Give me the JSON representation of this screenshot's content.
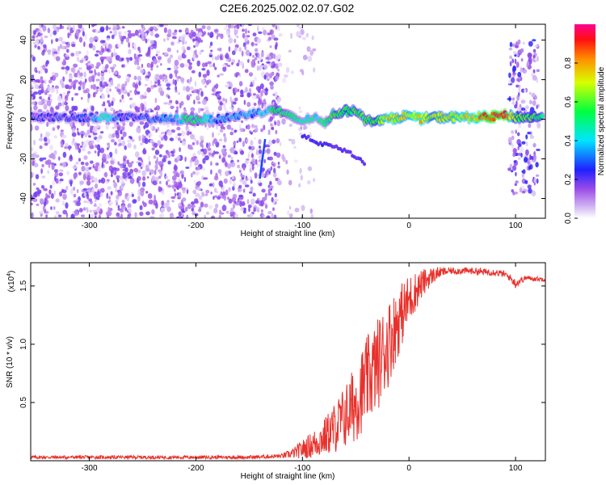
{
  "figure": {
    "title": "C2E6.2025.002.02.07.G02"
  },
  "chart_data": [
    {
      "type": "heatmap",
      "xlabel": "Height of straight line (km)",
      "ylabel": "Frequency (Hz)",
      "xlim": [
        -355,
        128
      ],
      "ylim": [
        -50,
        48
      ],
      "xticks": [
        -300,
        -200,
        -100,
        0,
        100
      ],
      "yticks": [
        -40,
        -20,
        0,
        20,
        40
      ],
      "colorbar": {
        "label": "Normalized spectral amplitude",
        "range": [
          0,
          1
        ],
        "ticks": [
          0.0,
          0.2,
          0.4,
          0.6,
          0.8
        ],
        "colors": [
          "#ffffff",
          "#cfb4f2",
          "#8a2be2",
          "#0000ff",
          "#00ffff",
          "#00ff00",
          "#ffff00",
          "#ff8000",
          "#ff0000",
          "#ff00aa"
        ]
      },
      "features": {
        "noise_regions": [
          {
            "x": [
              -355,
              -122
            ],
            "y": [
              -50,
              48
            ],
            "density": "high",
            "amplitude": 0.15
          },
          {
            "x": [
              -122,
              -88
            ],
            "y": [
              -50,
              48
            ],
            "density": "low",
            "amplitude": 0.06
          },
          {
            "x": [
              94,
              122
            ],
            "y": [
              -38,
              40
            ],
            "density": "high",
            "amplitude": 0.2
          }
        ],
        "ridge": [
          [
            -355,
            1,
            0.2
          ],
          [
            -300,
            1,
            0.25
          ],
          [
            -285,
            1,
            0.45
          ],
          [
            -270,
            1,
            0.22
          ],
          [
            -220,
            0,
            0.3
          ],
          [
            -210,
            0,
            0.5
          ],
          [
            -195,
            0,
            0.5
          ],
          [
            -180,
            0,
            0.3
          ],
          [
            -135,
            4,
            0.35
          ],
          [
            -125,
            5,
            0.55
          ],
          [
            -115,
            2,
            0.5
          ],
          [
            -100,
            -1,
            0.45
          ],
          [
            -90,
            1,
            0.45
          ],
          [
            -80,
            -2,
            0.45
          ],
          [
            -70,
            3,
            0.55
          ],
          [
            -60,
            4,
            0.6
          ],
          [
            -50,
            5,
            0.55
          ],
          [
            -40,
            -1,
            0.55
          ],
          [
            -30,
            0,
            0.6
          ],
          [
            -20,
            0,
            0.75
          ],
          [
            -10,
            1,
            0.7
          ],
          [
            0,
            2,
            0.7
          ],
          [
            10,
            0,
            0.8
          ],
          [
            20,
            1,
            0.65
          ],
          [
            40,
            1,
            0.7
          ],
          [
            60,
            1,
            0.75
          ],
          [
            75,
            1,
            0.9
          ],
          [
            90,
            2,
            0.95
          ],
          [
            100,
            1,
            0.6
          ],
          [
            112,
            1,
            0.6
          ],
          [
            126,
            1,
            0.55
          ]
        ],
        "secondary_trace": [
          [
            -100,
            -8
          ],
          [
            -85,
            -12
          ],
          [
            -70,
            -14
          ],
          [
            -55,
            -17
          ],
          [
            -40,
            -23
          ]
        ],
        "steep_streak": [
          [
            -140,
            -30
          ],
          [
            -135,
            -10
          ]
        ]
      }
    },
    {
      "type": "line",
      "xlabel": "Height of straight line (km)",
      "ylabel": "SNR (10 * v/v)",
      "yscale_label": "(x10",
      "yscale_exp": "4",
      "xlim": [
        -355,
        128
      ],
      "ylim": [
        0,
        1.7
      ],
      "xticks": [
        -300,
        -200,
        -100,
        0,
        100
      ],
      "yticks": [
        0.5,
        1.0,
        1.5
      ],
      "ytick_labels": [
        "0.5",
        "1.0",
        "1.5"
      ],
      "color": "#e8312c",
      "series": [
        {
          "x": [
            -355,
            -300,
            -250,
            -200,
            -150,
            -120,
            -110,
            -100,
            -90,
            -80,
            -70,
            -60,
            -50,
            -40,
            -30,
            -20,
            -10,
            0,
            10,
            20,
            30,
            40,
            50,
            60,
            70,
            80,
            90,
            95,
            100,
            105,
            110,
            120,
            128
          ],
          "values": [
            0.03,
            0.03,
            0.03,
            0.03,
            0.03,
            0.04,
            0.06,
            0.1,
            0.14,
            0.2,
            0.28,
            0.38,
            0.5,
            0.68,
            0.82,
            1.0,
            1.2,
            1.38,
            1.5,
            1.58,
            1.62,
            1.63,
            1.63,
            1.63,
            1.62,
            1.62,
            1.6,
            1.57,
            1.52,
            1.55,
            1.57,
            1.56,
            1.56
          ],
          "noise": [
            0.015,
            0.015,
            0.015,
            0.015,
            0.015,
            0.02,
            0.04,
            0.08,
            0.12,
            0.16,
            0.22,
            0.28,
            0.34,
            0.38,
            0.4,
            0.38,
            0.3,
            0.22,
            0.14,
            0.08,
            0.04,
            0.03,
            0.03,
            0.03,
            0.03,
            0.03,
            0.03,
            0.03,
            0.04,
            0.03,
            0.02,
            0.02,
            0.02
          ]
        }
      ]
    }
  ]
}
